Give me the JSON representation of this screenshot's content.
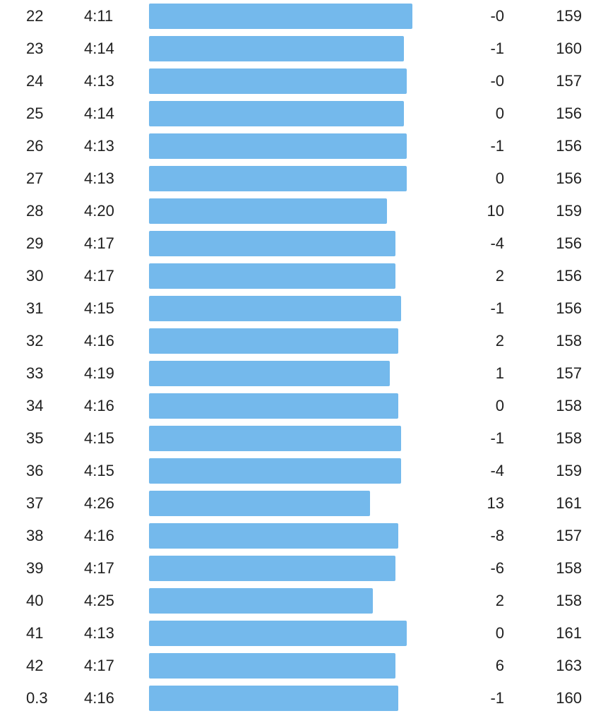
{
  "splits": {
    "accent_color": "#74b9ec",
    "rows": [
      {
        "km": "22",
        "pace": "4:11",
        "pace_sec": 251,
        "elevation": "-0",
        "heart_rate": "159"
      },
      {
        "km": "23",
        "pace": "4:14",
        "pace_sec": 254,
        "elevation": "-1",
        "heart_rate": "160"
      },
      {
        "km": "24",
        "pace": "4:13",
        "pace_sec": 253,
        "elevation": "-0",
        "heart_rate": "157"
      },
      {
        "km": "25",
        "pace": "4:14",
        "pace_sec": 254,
        "elevation": "0",
        "heart_rate": "156"
      },
      {
        "km": "26",
        "pace": "4:13",
        "pace_sec": 253,
        "elevation": "-1",
        "heart_rate": "156"
      },
      {
        "km": "27",
        "pace": "4:13",
        "pace_sec": 253,
        "elevation": "0",
        "heart_rate": "156"
      },
      {
        "km": "28",
        "pace": "4:20",
        "pace_sec": 260,
        "elevation": "10",
        "heart_rate": "159"
      },
      {
        "km": "29",
        "pace": "4:17",
        "pace_sec": 257,
        "elevation": "-4",
        "heart_rate": "156"
      },
      {
        "km": "30",
        "pace": "4:17",
        "pace_sec": 257,
        "elevation": "2",
        "heart_rate": "156"
      },
      {
        "km": "31",
        "pace": "4:15",
        "pace_sec": 255,
        "elevation": "-1",
        "heart_rate": "156"
      },
      {
        "km": "32",
        "pace": "4:16",
        "pace_sec": 256,
        "elevation": "2",
        "heart_rate": "158"
      },
      {
        "km": "33",
        "pace": "4:19",
        "pace_sec": 259,
        "elevation": "1",
        "heart_rate": "157"
      },
      {
        "km": "34",
        "pace": "4:16",
        "pace_sec": 256,
        "elevation": "0",
        "heart_rate": "158"
      },
      {
        "km": "35",
        "pace": "4:15",
        "pace_sec": 255,
        "elevation": "-1",
        "heart_rate": "158"
      },
      {
        "km": "36",
        "pace": "4:15",
        "pace_sec": 255,
        "elevation": "-4",
        "heart_rate": "159"
      },
      {
        "km": "37",
        "pace": "4:26",
        "pace_sec": 266,
        "elevation": "13",
        "heart_rate": "161"
      },
      {
        "km": "38",
        "pace": "4:16",
        "pace_sec": 256,
        "elevation": "-8",
        "heart_rate": "157"
      },
      {
        "km": "39",
        "pace": "4:17",
        "pace_sec": 257,
        "elevation": "-6",
        "heart_rate": "158"
      },
      {
        "km": "40",
        "pace": "4:25",
        "pace_sec": 265,
        "elevation": "2",
        "heart_rate": "158"
      },
      {
        "km": "41",
        "pace": "4:13",
        "pace_sec": 253,
        "elevation": "0",
        "heart_rate": "161"
      },
      {
        "km": "42",
        "pace": "4:17",
        "pace_sec": 257,
        "elevation": "6",
        "heart_rate": "163"
      },
      {
        "km": "0.3",
        "pace": "4:16",
        "pace_sec": 256,
        "elevation": "-1",
        "heart_rate": "160"
      }
    ]
  }
}
